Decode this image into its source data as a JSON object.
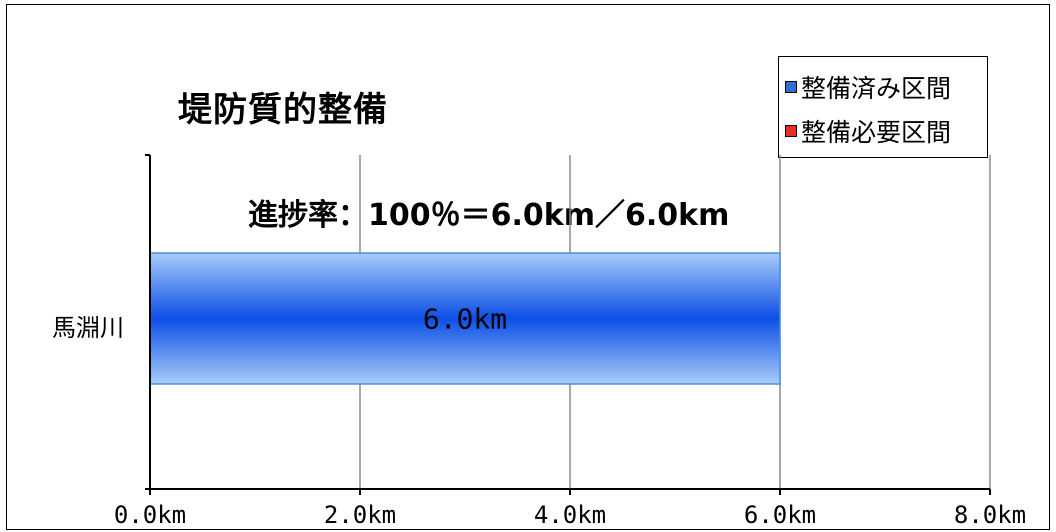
{
  "chart_title": "堤防質的整備",
  "progress_note": "進捗率：100％＝6.0km／6.0km",
  "legend": [
    {
      "label": "整備済み区間",
      "color": "#2f6fd8"
    },
    {
      "label": "整備必要区間",
      "color": "#ee2a24"
    }
  ],
  "chart_data": {
    "type": "bar",
    "orientation": "horizontal",
    "categories": [
      "馬淵川"
    ],
    "series": [
      {
        "name": "整備済み区間",
        "values": [
          6.0
        ],
        "data_labels": [
          "6.0km"
        ],
        "color": "#1f5fe0"
      },
      {
        "name": "整備必要区間",
        "values": [
          0.0
        ],
        "data_labels": [
          ""
        ],
        "color": "#ee2a24"
      }
    ],
    "xlim": [
      0,
      8
    ],
    "x_ticks": [
      0,
      2,
      4,
      6,
      8
    ],
    "x_tick_labels": [
      "0.0km",
      "2.0km",
      "4.0km",
      "6.0km",
      "8.0km"
    ],
    "grid": "vertical",
    "legend_position": "top-right",
    "title": "堤防質的整備",
    "xlabel": "",
    "ylabel": ""
  },
  "colors": {
    "gridline": "#8c8c8c",
    "axis": "#000000",
    "bar_edge": "#4a90e2",
    "bar_light": "#a9ccfa",
    "bar_mid": "#3a7bea",
    "bar_dark": "#0c4fe6"
  }
}
